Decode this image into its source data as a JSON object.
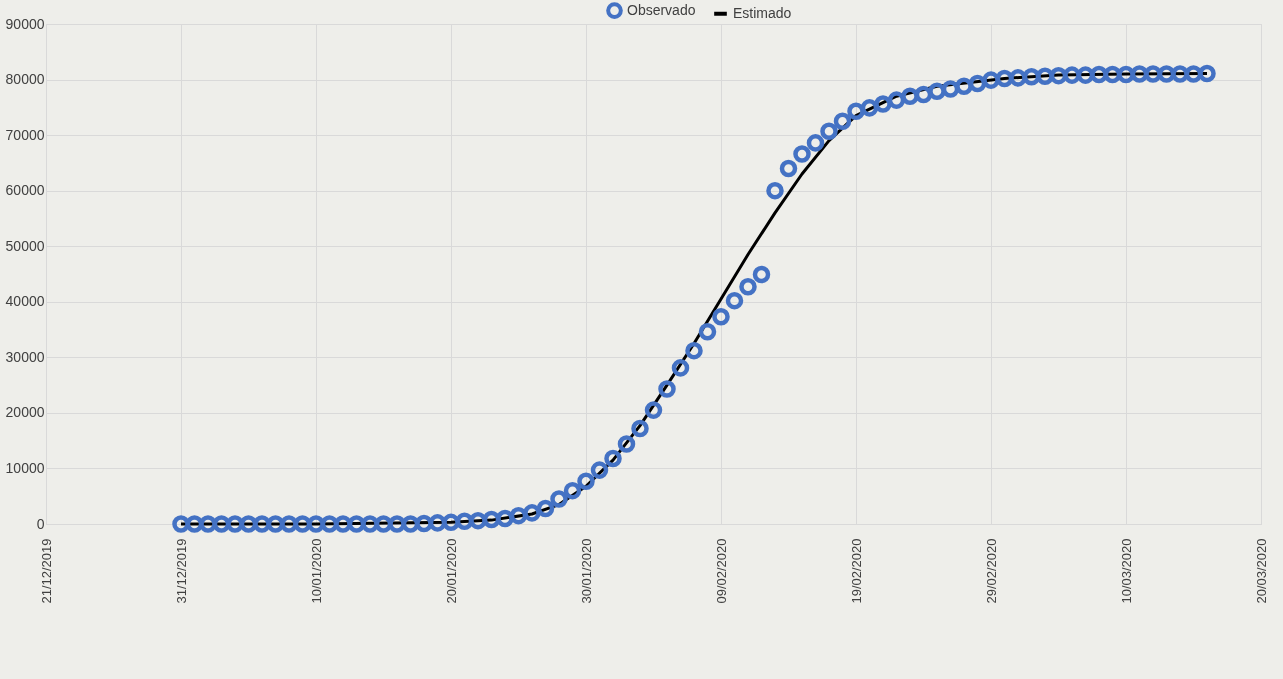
{
  "chart_data": {
    "type": "scatter",
    "legend": "top",
    "grid": true,
    "x": [
      "2019-12-31",
      "2020-01-01",
      "2020-01-02",
      "2020-01-03",
      "2020-01-04",
      "2020-01-05",
      "2020-01-06",
      "2020-01-07",
      "2020-01-08",
      "2020-01-09",
      "2020-01-10",
      "2020-01-11",
      "2020-01-12",
      "2020-01-13",
      "2020-01-14",
      "2020-01-15",
      "2020-01-16",
      "2020-01-17",
      "2020-01-18",
      "2020-01-19",
      "2020-01-20",
      "2020-01-21",
      "2020-01-22",
      "2020-01-23",
      "2020-01-24",
      "2020-01-25",
      "2020-01-26",
      "2020-01-27",
      "2020-01-28",
      "2020-01-29",
      "2020-01-30",
      "2020-01-31",
      "2020-02-01",
      "2020-02-02",
      "2020-02-03",
      "2020-02-04",
      "2020-02-05",
      "2020-02-06",
      "2020-02-07",
      "2020-02-08",
      "2020-02-09",
      "2020-02-10",
      "2020-02-11",
      "2020-02-12",
      "2020-02-13",
      "2020-02-14",
      "2020-02-15",
      "2020-02-16",
      "2020-02-17",
      "2020-02-18",
      "2020-02-19",
      "2020-02-20",
      "2020-02-21",
      "2020-02-22",
      "2020-02-23",
      "2020-02-24",
      "2020-02-25",
      "2020-02-26",
      "2020-02-27",
      "2020-02-28",
      "2020-02-29",
      "2020-03-01",
      "2020-03-02",
      "2020-03-03",
      "2020-03-04",
      "2020-03-05",
      "2020-03-06",
      "2020-03-07",
      "2020-03-08",
      "2020-03-09",
      "2020-03-10",
      "2020-03-11",
      "2020-03-12",
      "2020-03-13",
      "2020-03-14",
      "2020-03-15",
      "2020-03-16"
    ],
    "series": [
      {
        "name": "Observado",
        "color": "#4472c4",
        "marker": "circle",
        "values": [
          0,
          0,
          0,
          0,
          0,
          0,
          0,
          0,
          0,
          0,
          0,
          0,
          0,
          0,
          0,
          0,
          0,
          0,
          100,
          200,
          300,
          500,
          600,
          800,
          1000,
          1500,
          2000,
          2800,
          4500,
          6000,
          7700,
          9700,
          11800,
          14400,
          17200,
          20500,
          24300,
          28100,
          31200,
          34600,
          37300,
          40200,
          42700,
          44900,
          60000,
          64000,
          66600,
          68600,
          70700,
          72500,
          74300,
          74900,
          75600,
          76300,
          77000,
          77300,
          77900,
          78300,
          78800,
          79300,
          79900,
          80200,
          80300,
          80500,
          80600,
          80700,
          80800,
          80800,
          80900,
          80900,
          80900,
          81000,
          81000,
          81000,
          81000,
          81000,
          81100
        ]
      },
      {
        "name": "Estimado",
        "type": "line",
        "color": "#000000",
        "marker": "none",
        "line_style": "solid",
        "x": [
          "2019-12-31",
          "2020-01-10",
          "2020-01-20",
          "2020-01-23",
          "2020-01-26",
          "2020-01-28",
          "2020-01-30",
          "2020-02-01",
          "2020-02-03",
          "2020-02-05",
          "2020-02-07",
          "2020-02-09",
          "2020-02-11",
          "2020-02-13",
          "2020-02-15",
          "2020-02-17",
          "2020-02-19",
          "2020-02-22",
          "2020-02-25",
          "2020-03-01",
          "2020-03-05",
          "2020-03-10",
          "2020-03-16"
        ],
        "values": [
          0,
          0,
          300,
          700,
          1800,
          3500,
          6800,
          11500,
          17700,
          25000,
          32500,
          40500,
          48500,
          56000,
          63000,
          69000,
          73500,
          77000,
          78800,
          80200,
          80800,
          81000,
          81100
        ]
      }
    ],
    "xlim": [
      "2019-12-21",
      "2020-03-20"
    ],
    "xticks": [
      {
        "value": "2019-12-21",
        "label": "21/12/2019"
      },
      {
        "value": "2019-12-31",
        "label": "31/12/2019"
      },
      {
        "value": "2020-01-10",
        "label": "10/01/2020"
      },
      {
        "value": "2020-01-20",
        "label": "20/01/2020"
      },
      {
        "value": "2020-01-30",
        "label": "30/01/2020"
      },
      {
        "value": "2020-02-09",
        "label": "09/02/2020"
      },
      {
        "value": "2020-02-19",
        "label": "19/02/2020"
      },
      {
        "value": "2020-02-29",
        "label": "29/02/2020"
      },
      {
        "value": "2020-03-10",
        "label": "10/03/2020"
      },
      {
        "value": "2020-03-20",
        "label": "20/03/2020"
      }
    ],
    "ylim": [
      0,
      90000
    ],
    "yticks": [
      0,
      10000,
      20000,
      30000,
      40000,
      50000,
      60000,
      70000,
      80000,
      90000
    ]
  }
}
